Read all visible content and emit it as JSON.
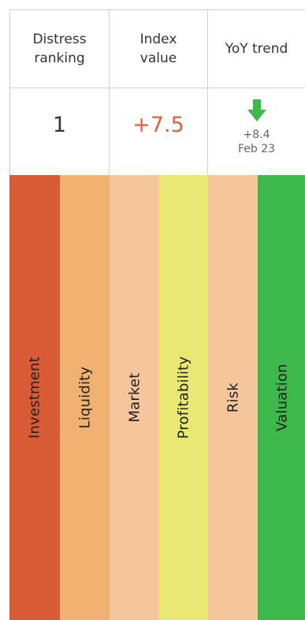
{
  "table": {
    "headers": [
      {
        "line1": "Distress",
        "line2": "ranking"
      },
      {
        "line1": "Index",
        "line2": "value"
      },
      {
        "line1": "YoY trend",
        "line2": ""
      }
    ],
    "ranking": "1",
    "index_value": "+7.5",
    "trend": {
      "direction_icon": "arrow-down-icon",
      "arrow_color": "#3db84a",
      "change": "+8.4",
      "date": "Feb 23"
    }
  },
  "categories": [
    {
      "label": "Investment",
      "color": "#d95b36"
    },
    {
      "label": "Liquidity",
      "color": "#f0b171"
    },
    {
      "label": "Market",
      "color": "#f5c59b"
    },
    {
      "label": "Profitability",
      "color": "#e8e873"
    },
    {
      "label": "Risk",
      "color": "#f5c59b"
    },
    {
      "label": "Valuation",
      "color": "#3db84a"
    }
  ]
}
